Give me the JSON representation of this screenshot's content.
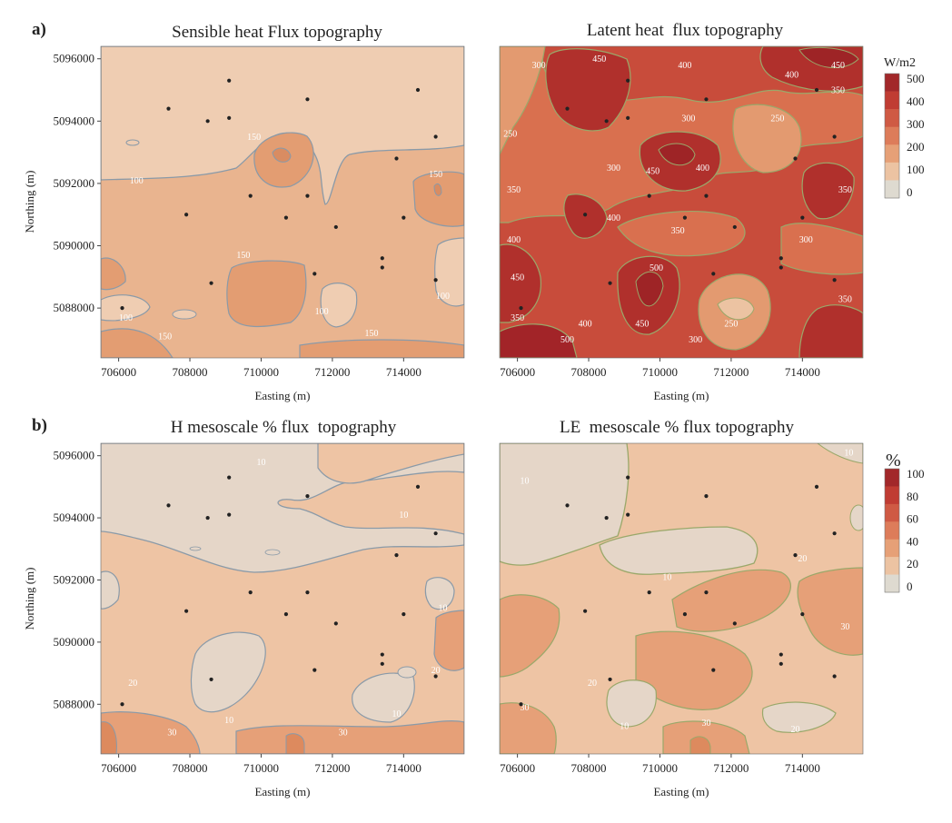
{
  "panel_labels": [
    "a)",
    "b)"
  ],
  "chart_data": [
    {
      "type": "heatmap",
      "title": "Sensible heat Flux topography",
      "xlabel": "Easting (m)",
      "ylabel": "Northing (m)",
      "xlim": [
        705500,
        715700
      ],
      "ylim": [
        5086400,
        5096400
      ],
      "x_ticks": [
        706000,
        708000,
        710000,
        712000,
        714000
      ],
      "y_ticks": [
        5088000,
        5090000,
        5092000,
        5094000,
        5096000
      ],
      "x_tick_labels": [
        "706000",
        "708000",
        "710000",
        "712000",
        "714000"
      ],
      "y_tick_labels": [
        "5088000",
        "5090000",
        "5092000",
        "5094000",
        "5096000"
      ],
      "colorbar": "W/m2",
      "contour_labels": [
        {
          "text": "100",
          "x": 706500,
          "y": 5092000
        },
        {
          "text": "150",
          "x": 709800,
          "y": 5093400
        },
        {
          "text": "150",
          "x": 714900,
          "y": 5092200
        },
        {
          "text": "150",
          "x": 709500,
          "y": 5089600
        },
        {
          "text": "100",
          "x": 706200,
          "y": 5087600
        },
        {
          "text": "150",
          "x": 707300,
          "y": 5087000
        },
        {
          "text": "100",
          "x": 711700,
          "y": 5087800
        },
        {
          "text": "150",
          "x": 713100,
          "y": 5087100
        },
        {
          "text": "100",
          "x": 715100,
          "y": 5088300
        }
      ],
      "stations": [
        [
          707400,
          5094400
        ],
        [
          708500,
          5094000
        ],
        [
          709100,
          5094100
        ],
        [
          709100,
          5095300
        ],
        [
          711300,
          5094700
        ],
        [
          714400,
          5095000
        ],
        [
          714900,
          5093500
        ],
        [
          713800,
          5092800
        ],
        [
          707900,
          5091000
        ],
        [
          709700,
          5091600
        ],
        [
          710700,
          5090900
        ],
        [
          711300,
          5091600
        ],
        [
          712100,
          5090600
        ],
        [
          714000,
          5090900
        ],
        [
          713400,
          5089600
        ],
        [
          713400,
          5089300
        ],
        [
          711500,
          5089100
        ],
        [
          708600,
          5088800
        ],
        [
          714900,
          5088900
        ],
        [
          706100,
          5088000
        ]
      ]
    },
    {
      "type": "heatmap",
      "title": "Latent heat  flux topography",
      "xlabel": "Easting (m)",
      "ylabel": "",
      "xlim": [
        705500,
        715700
      ],
      "ylim": [
        5086400,
        5096400
      ],
      "x_ticks": [
        706000,
        708000,
        710000,
        712000,
        714000
      ],
      "x_tick_labels": [
        "706000",
        "708000",
        "710000",
        "712000",
        "714000"
      ],
      "colorbar": "W/m2",
      "contour_labels": [
        {
          "text": "450",
          "x": 708300,
          "y": 5095900
        },
        {
          "text": "400",
          "x": 710700,
          "y": 5095700
        },
        {
          "text": "300",
          "x": 706600,
          "y": 5095700
        },
        {
          "text": "450",
          "x": 715000,
          "y": 5095700
        },
        {
          "text": "400",
          "x": 713700,
          "y": 5095400
        },
        {
          "text": "350",
          "x": 715000,
          "y": 5094900
        },
        {
          "text": "300",
          "x": 710800,
          "y": 5094000
        },
        {
          "text": "250",
          "x": 713300,
          "y": 5094000
        },
        {
          "text": "250",
          "x": 705800,
          "y": 5093500
        },
        {
          "text": "300",
          "x": 708700,
          "y": 5092400
        },
        {
          "text": "450",
          "x": 709800,
          "y": 5092300
        },
        {
          "text": "400",
          "x": 711200,
          "y": 5092400
        },
        {
          "text": "350",
          "x": 705900,
          "y": 5091700
        },
        {
          "text": "350",
          "x": 715200,
          "y": 5091700
        },
        {
          "text": "400",
          "x": 708700,
          "y": 5090800
        },
        {
          "text": "350",
          "x": 710500,
          "y": 5090400
        },
        {
          "text": "300",
          "x": 714100,
          "y": 5090100
        },
        {
          "text": "400",
          "x": 705900,
          "y": 5090100
        },
        {
          "text": "450",
          "x": 706000,
          "y": 5088900
        },
        {
          "text": "500",
          "x": 709900,
          "y": 5089200
        },
        {
          "text": "350",
          "x": 715200,
          "y": 5088200
        },
        {
          "text": "350",
          "x": 706000,
          "y": 5087600
        },
        {
          "text": "400",
          "x": 707900,
          "y": 5087400
        },
        {
          "text": "450",
          "x": 709500,
          "y": 5087400
        },
        {
          "text": "250",
          "x": 712000,
          "y": 5087400
        },
        {
          "text": "500",
          "x": 707400,
          "y": 5086900
        },
        {
          "text": "300",
          "x": 711000,
          "y": 5086900
        }
      ],
      "stations": [
        [
          707400,
          5094400
        ],
        [
          708500,
          5094000
        ],
        [
          709100,
          5094100
        ],
        [
          709100,
          5095300
        ],
        [
          711300,
          5094700
        ],
        [
          714400,
          5095000
        ],
        [
          714900,
          5093500
        ],
        [
          713800,
          5092800
        ],
        [
          707900,
          5091000
        ],
        [
          709700,
          5091600
        ],
        [
          710700,
          5090900
        ],
        [
          711300,
          5091600
        ],
        [
          712100,
          5090600
        ],
        [
          714000,
          5090900
        ],
        [
          713400,
          5089600
        ],
        [
          713400,
          5089300
        ],
        [
          711500,
          5089100
        ],
        [
          708600,
          5088800
        ],
        [
          714900,
          5088900
        ],
        [
          706100,
          5088000
        ]
      ]
    },
    {
      "type": "heatmap",
      "title": "H mesoscale % flux  topography",
      "xlabel": "Easting (m)",
      "ylabel": "Northing (m)",
      "xlim": [
        705500,
        715700
      ],
      "ylim": [
        5086400,
        5096400
      ],
      "x_ticks": [
        706000,
        708000,
        710000,
        712000,
        714000
      ],
      "y_ticks": [
        5088000,
        5090000,
        5092000,
        5094000,
        5096000
      ],
      "x_tick_labels": [
        "706000",
        "708000",
        "710000",
        "712000",
        "714000"
      ],
      "y_tick_labels": [
        "5088000",
        "5090000",
        "5092000",
        "5094000",
        "5096000"
      ],
      "colorbar": "%",
      "contour_labels": [
        {
          "text": "10",
          "x": 710000,
          "y": 5095700
        },
        {
          "text": "10",
          "x": 714000,
          "y": 5094000
        },
        {
          "text": "10",
          "x": 715100,
          "y": 5091000
        },
        {
          "text": "20",
          "x": 706400,
          "y": 5088600
        },
        {
          "text": "20",
          "x": 714900,
          "y": 5089000
        },
        {
          "text": "10",
          "x": 709100,
          "y": 5087400
        },
        {
          "text": "10",
          "x": 713800,
          "y": 5087600
        },
        {
          "text": "30",
          "x": 707500,
          "y": 5087000
        },
        {
          "text": "30",
          "x": 712300,
          "y": 5087000
        }
      ],
      "stations": [
        [
          707400,
          5094400
        ],
        [
          708500,
          5094000
        ],
        [
          709100,
          5094100
        ],
        [
          709100,
          5095300
        ],
        [
          711300,
          5094700
        ],
        [
          714400,
          5095000
        ],
        [
          714900,
          5093500
        ],
        [
          713800,
          5092800
        ],
        [
          707900,
          5091000
        ],
        [
          709700,
          5091600
        ],
        [
          710700,
          5090900
        ],
        [
          711300,
          5091600
        ],
        [
          712100,
          5090600
        ],
        [
          714000,
          5090900
        ],
        [
          713400,
          5089600
        ],
        [
          713400,
          5089300
        ],
        [
          711500,
          5089100
        ],
        [
          708600,
          5088800
        ],
        [
          714900,
          5088900
        ],
        [
          706100,
          5088000
        ]
      ]
    },
    {
      "type": "heatmap",
      "title": "LE  mesoscale % flux topography",
      "xlabel": "Easting (m)",
      "ylabel": "",
      "xlim": [
        705500,
        715700
      ],
      "ylim": [
        5086400,
        5096400
      ],
      "x_ticks": [
        706000,
        708000,
        710000,
        712000,
        714000
      ],
      "x_tick_labels": [
        "706000",
        "708000",
        "710000",
        "712000",
        "714000"
      ],
      "colorbar": "%",
      "contour_labels": [
        {
          "text": "10",
          "x": 706200,
          "y": 5095100
        },
        {
          "text": "10",
          "x": 715300,
          "y": 5096000
        },
        {
          "text": "10",
          "x": 710200,
          "y": 5092000
        },
        {
          "text": "20",
          "x": 714000,
          "y": 5092600
        },
        {
          "text": "30",
          "x": 715200,
          "y": 5090400
        },
        {
          "text": "20",
          "x": 708100,
          "y": 5088600
        },
        {
          "text": "30",
          "x": 706200,
          "y": 5087800
        },
        {
          "text": "10",
          "x": 709000,
          "y": 5087200
        },
        {
          "text": "30",
          "x": 711300,
          "y": 5087300
        },
        {
          "text": "20",
          "x": 713800,
          "y": 5087100
        }
      ],
      "stations": [
        [
          707400,
          5094400
        ],
        [
          708500,
          5094000
        ],
        [
          709100,
          5094100
        ],
        [
          709100,
          5095300
        ],
        [
          711300,
          5094700
        ],
        [
          714400,
          5095000
        ],
        [
          714900,
          5093500
        ],
        [
          713800,
          5092800
        ],
        [
          707900,
          5091000
        ],
        [
          709700,
          5091600
        ],
        [
          710700,
          5090900
        ],
        [
          711300,
          5091600
        ],
        [
          712100,
          5090600
        ],
        [
          714000,
          5090900
        ],
        [
          713400,
          5089600
        ],
        [
          713400,
          5089300
        ],
        [
          711500,
          5089100
        ],
        [
          708600,
          5088800
        ],
        [
          714900,
          5088900
        ],
        [
          706100,
          5088000
        ]
      ]
    }
  ],
  "colorbars": [
    {
      "title": "W/m2",
      "ticks": [
        "500",
        "400",
        "300",
        "200",
        "100",
        "0"
      ],
      "range": [
        0,
        500
      ],
      "colors": [
        "#a2282a",
        "#c03c33",
        "#cf5a44",
        "#dd7c5a",
        "#e6a077",
        "#ecc3a2",
        "#dedad0"
      ]
    },
    {
      "title": "%",
      "ticks": [
        "100",
        "80",
        "60",
        "40",
        "20",
        "0"
      ],
      "range": [
        0,
        100
      ],
      "colors": [
        "#a2282a",
        "#c03c33",
        "#cf5a44",
        "#dd7c5a",
        "#e6a077",
        "#ecc3a2",
        "#dedad0"
      ]
    }
  ],
  "colors": {
    "h_base": "#e9b48f",
    "h_low": "#efcdb2",
    "h_high": "#e39d72",
    "le_base": "#c84c3b",
    "le_high": "#b0302c",
    "le_mid": "#d9704f",
    "le_low": "#e39a70",
    "pct_low": "#e5d6c8",
    "pct_mid": "#eec4a4",
    "pct_high": "#e6a078",
    "contour_h": "#8a9aa8",
    "contour_le": "#9aa86a",
    "station": "#222222"
  }
}
